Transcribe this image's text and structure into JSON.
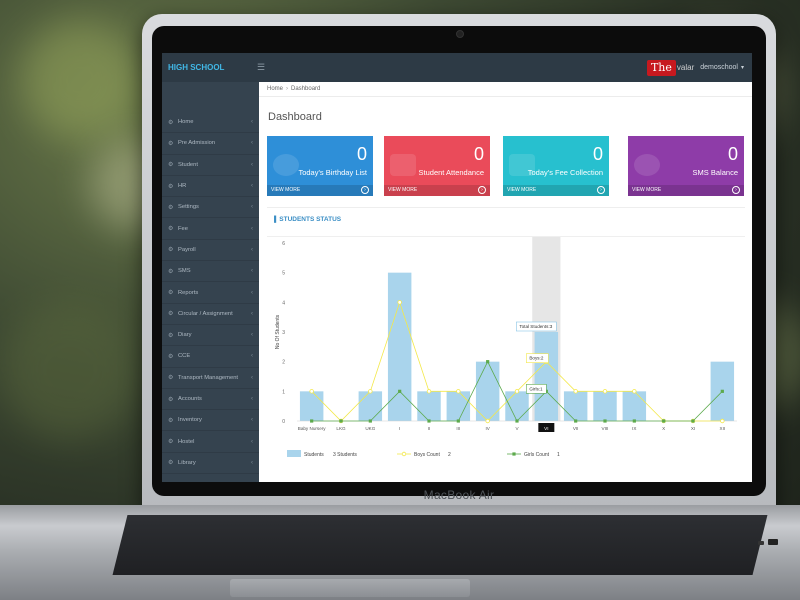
{
  "laptop": {
    "brand": "MacBook Air"
  },
  "app": {
    "title": "HIGH SCHOOL",
    "menu_icon": "hamburger-icon",
    "logo_text": "The",
    "logo_tail": "valar",
    "user": "demoschool"
  },
  "sidebar": {
    "items": [
      {
        "label": "Home"
      },
      {
        "label": "Pre Admission"
      },
      {
        "label": "Student"
      },
      {
        "label": "HR"
      },
      {
        "label": "Settings"
      },
      {
        "label": "Fee"
      },
      {
        "label": "Payroll"
      },
      {
        "label": "SMS"
      },
      {
        "label": "Reports"
      },
      {
        "label": "Circular / Assignment"
      },
      {
        "label": "Diary"
      },
      {
        "label": "CCE"
      },
      {
        "label": "Transport Management"
      },
      {
        "label": "Accounts"
      },
      {
        "label": "Inventory"
      },
      {
        "label": "Hostel"
      },
      {
        "label": "Library"
      }
    ]
  },
  "breadcrumb": {
    "home": "Home",
    "current": "Dashboard"
  },
  "page": {
    "title": "Dashboard"
  },
  "cards": [
    {
      "count": "0",
      "label": "Today's Birthday List",
      "footer": "VIEW MORE",
      "color": "#2e8fd8"
    },
    {
      "count": "0",
      "label": "Student Attendance",
      "footer": "VIEW MORE",
      "color": "#ea4b5a"
    },
    {
      "count": "0",
      "label": "Today's Fee Collection",
      "footer": "VIEW MORE",
      "color": "#27c0cf"
    },
    {
      "count": "0",
      "label": "SMS Balance",
      "footer": "VIEW MORE",
      "color": "#8e3ca8"
    }
  ],
  "panel": {
    "title": "STUDENTS STATUS"
  },
  "chart_data": {
    "type": "bar",
    "ylabel": "No Of Students",
    "ylim": [
      0,
      6
    ],
    "yticks": [
      0,
      1,
      2,
      3,
      4,
      5,
      6
    ],
    "categories": [
      "Baby Nursery",
      "LKG",
      "UKG",
      "I",
      "II",
      "III",
      "IV",
      "V",
      "VI",
      "VII",
      "VIII",
      "IX",
      "X",
      "XI",
      "XII"
    ],
    "series": [
      {
        "name": "Students",
        "type": "bar",
        "color": "#a9d4ec",
        "values": [
          1,
          0,
          1,
          5,
          1,
          1,
          2,
          1,
          3,
          1,
          1,
          1,
          0,
          0,
          2
        ]
      },
      {
        "name": "Boys Count",
        "type": "line",
        "color": "#f3e84a",
        "values": [
          1,
          0,
          1,
          4,
          1,
          1,
          0,
          1,
          2,
          1,
          1,
          1,
          0,
          0,
          0
        ]
      },
      {
        "name": "Girls Count",
        "type": "line",
        "color": "#5daa4d",
        "values": [
          0,
          0,
          0,
          1,
          0,
          0,
          2,
          0,
          1,
          0,
          0,
          0,
          0,
          0,
          1
        ]
      }
    ],
    "highlight_index": 8,
    "tooltip": {
      "total": "Total Students:3",
      "boys": "Boys:2",
      "girls": "Girls:1"
    },
    "legend": [
      {
        "label": "Students",
        "value": "3 Students"
      },
      {
        "label": "Boys Count",
        "value": "2"
      },
      {
        "label": "Girls Count",
        "value": "1"
      }
    ]
  }
}
